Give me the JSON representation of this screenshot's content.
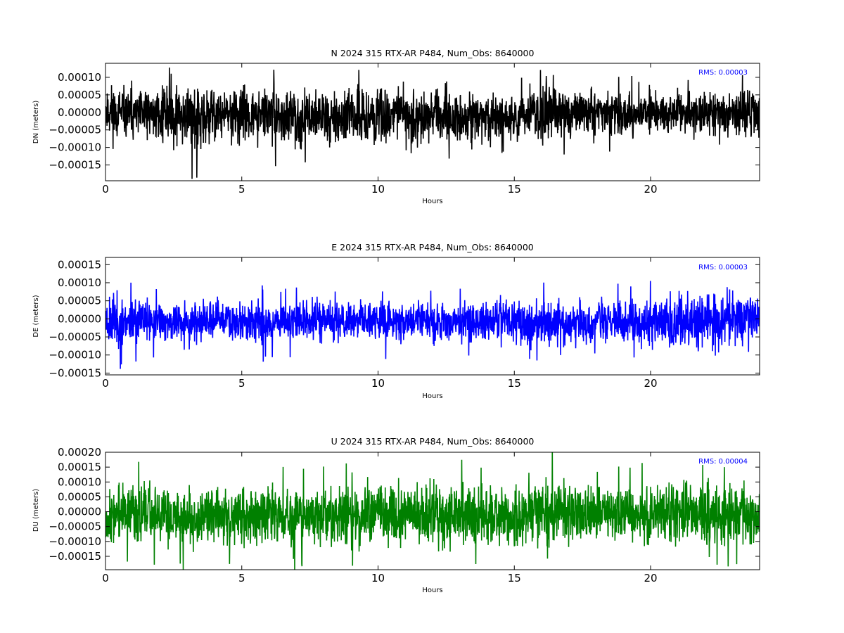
{
  "chart_data": [
    {
      "type": "line",
      "title": "N 2024 315 RTX-AR  P484, Num_Obs: 8640000",
      "xlabel": "Hours",
      "ylabel": "DN (meters)",
      "rms_label": "RMS:  0.00003",
      "color": "#000000",
      "xlim": [
        0,
        24
      ],
      "ylim": [
        -0.000195,
        0.00014
      ],
      "xticks": [
        0,
        5,
        10,
        15,
        20
      ],
      "xtick_labels": [
        "0",
        "5",
        "10",
        "15",
        "20"
      ],
      "yticks": [
        -0.00015,
        -0.0001,
        -5e-05,
        0.0,
        5e-05,
        0.0001
      ],
      "ytick_labels": [
        "−0.00015",
        "−0.00010",
        "−0.00005",
        "0.00000",
        "0.00005",
        "0.00010"
      ],
      "series": [
        {
          "x": [
            0,
            0.5,
            1,
            1.5,
            2,
            2.5,
            3,
            3.5,
            4,
            4.5,
            5,
            5.5,
            6,
            6.5,
            7,
            7.5,
            8,
            8.5,
            9,
            9.5,
            10,
            10.5,
            11,
            11.5,
            12,
            12.5,
            13,
            13.5,
            14,
            14.5,
            15,
            15.5,
            16,
            16.5,
            17,
            17.5,
            18,
            18.5,
            19,
            19.5,
            20,
            20.5,
            21,
            21.5,
            22,
            22.5,
            23,
            23.5,
            24
          ],
          "y_upper": [
            0.00013,
            9e-05,
            8e-05,
            9e-05,
            0.00012,
            0.00011,
            0.00012,
            0.0001,
            0.0001,
            9e-05,
            0.0001,
            9e-05,
            0.0001,
            8e-05,
            9e-05,
            8e-05,
            9e-05,
            8e-05,
            9e-05,
            0.0001,
            0.0001,
            0.0001,
            0.0001,
            9e-05,
            9e-05,
            0.0001,
            8e-05,
            8e-05,
            7e-05,
            8e-05,
            8e-05,
            7e-05,
            0.00011,
            0.00012,
            9e-05,
            9e-05,
            8e-05,
            8e-05,
            7e-05,
            8e-05,
            7e-05,
            8e-05,
            8e-05,
            7e-05,
            8e-05,
            8e-05,
            7e-05,
            8e-05,
            0.0001
          ],
          "y_lower": [
            -0.00012,
            -0.0001,
            -0.0001,
            -0.0001,
            -0.00012,
            -0.00012,
            -0.00013,
            -0.00016,
            -0.00011,
            -0.00011,
            -0.00012,
            -0.00011,
            -0.00011,
            -0.00011,
            -0.00012,
            -0.0001,
            -0.00011,
            -0.00011,
            -0.00011,
            -0.00012,
            -0.00012,
            -0.0001,
            -0.0001,
            -0.00011,
            -0.00011,
            -0.00015,
            -0.00011,
            -0.00011,
            -0.00011,
            -0.0001,
            -0.00011,
            -0.0001,
            -0.00012,
            -0.00011,
            -0.0001,
            -9e-05,
            -8e-05,
            -8e-05,
            -8e-05,
            -8e-05,
            -8e-05,
            -9e-05,
            -9e-05,
            -9e-05,
            -9e-05,
            -8e-05,
            -8e-05,
            -8e-05,
            -0.0001
          ]
        }
      ]
    },
    {
      "type": "line",
      "title": "E 2024 315 RTX-AR  P484, Num_Obs: 8640000",
      "xlabel": "Hours",
      "ylabel": "DE (meters)",
      "rms_label": "RMS:  0.00003",
      "color": "#0000ff",
      "xlim": [
        0,
        24
      ],
      "ylim": [
        -0.000155,
        0.00017
      ],
      "xticks": [
        0,
        5,
        10,
        15,
        20
      ],
      "xtick_labels": [
        "0",
        "5",
        "10",
        "15",
        "20"
      ],
      "yticks": [
        -0.00015,
        -0.0001,
        -5e-05,
        0.0,
        5e-05,
        0.0001,
        0.00015
      ],
      "ytick_labels": [
        "−0.00015",
        "−0.00010",
        "−0.00005",
        "0.00000",
        "0.00005",
        "0.00010",
        "0.00015"
      ],
      "series": [
        {
          "x": [
            0,
            0.5,
            1,
            1.5,
            2,
            2.5,
            3,
            3.5,
            4,
            4.5,
            5,
            5.5,
            6,
            6.5,
            7,
            7.5,
            8,
            8.5,
            9,
            9.5,
            10,
            10.5,
            11,
            11.5,
            12,
            12.5,
            13,
            13.5,
            14,
            14.5,
            15,
            15.5,
            16,
            16.5,
            17,
            17.5,
            18,
            18.5,
            19,
            19.5,
            20,
            20.5,
            21,
            21.5,
            22,
            22.5,
            23,
            23.5,
            24
          ],
          "y_upper": [
            0.00011,
            9e-05,
            8e-05,
            7e-05,
            6e-05,
            6e-05,
            6e-05,
            6e-05,
            7e-05,
            7e-05,
            7e-05,
            7e-05,
            7e-05,
            7e-05,
            7e-05,
            7e-05,
            7e-05,
            7e-05,
            7e-05,
            7e-05,
            7e-05,
            7e-05,
            7e-05,
            7e-05,
            7e-05,
            6e-05,
            6e-05,
            7e-05,
            7e-05,
            7e-05,
            7e-05,
            8e-05,
            8e-05,
            7e-05,
            7e-05,
            7e-05,
            7e-05,
            7e-05,
            7e-05,
            7e-05,
            8e-05,
            8e-05,
            9e-05,
            0.0001,
            0.00011,
            0.00012,
            0.00011,
            0.0001,
            0.0001
          ],
          "y_lower": [
            -0.00011,
            -0.0001,
            -9e-05,
            -8e-05,
            -8e-05,
            -8e-05,
            -8e-05,
            -8e-05,
            -8e-05,
            -8e-05,
            -9e-05,
            -9e-05,
            -9e-05,
            -8e-05,
            -8e-05,
            -8e-05,
            -8e-05,
            -8e-05,
            -8e-05,
            -8e-05,
            -8e-05,
            -8e-05,
            -8e-05,
            -8e-05,
            -8e-05,
            -8e-05,
            -8e-05,
            -8e-05,
            -8e-05,
            -8e-05,
            -9e-05,
            -0.0001,
            -0.0001,
            -9e-05,
            -9e-05,
            -9e-05,
            -9e-05,
            -9e-05,
            -9e-05,
            -9e-05,
            -9e-05,
            -0.0001,
            -0.0001,
            -0.00011,
            -0.00011,
            -0.00012,
            -0.00011,
            -0.0001,
            -0.0001
          ]
        }
      ]
    },
    {
      "type": "line",
      "title": "U 2024 315 RTX-AR  P484, Num_Obs: 8640000",
      "xlabel": "Hours",
      "ylabel": "DU (meters)",
      "rms_label": "RMS:  0.00004",
      "color": "#008000",
      "xlim": [
        0,
        24
      ],
      "ylim": [
        -0.000195,
        0.0002
      ],
      "xticks": [
        0,
        5,
        10,
        15,
        20
      ],
      "xtick_labels": [
        "0",
        "5",
        "10",
        "15",
        "20"
      ],
      "yticks": [
        -0.00015,
        -0.0001,
        -5e-05,
        0.0,
        5e-05,
        0.0001,
        0.00015,
        0.0002
      ],
      "ytick_labels": [
        "−0.00015",
        "−0.00010",
        "−0.00005",
        "0.00000",
        "0.00005",
        "0.00010",
        "0.00015",
        "0.00020"
      ],
      "series": [
        {
          "x": [
            0,
            0.5,
            1,
            1.5,
            2,
            2.5,
            3,
            3.5,
            4,
            4.5,
            5,
            5.5,
            6,
            6.5,
            7,
            7.5,
            8,
            8.5,
            9,
            9.5,
            10,
            10.5,
            11,
            11.5,
            12,
            12.5,
            13,
            13.5,
            14,
            14.5,
            15,
            15.5,
            16,
            16.5,
            17,
            17.5,
            18,
            18.5,
            19,
            19.5,
            20,
            20.5,
            21,
            21.5,
            22,
            22.5,
            23,
            23.5,
            24
          ],
          "y_upper": [
            0.0001,
            0.00013,
            0.00015,
            0.00012,
            0.00011,
            0.00011,
            0.00011,
            0.00011,
            0.00011,
            0.00011,
            0.00012,
            0.00011,
            0.00015,
            0.00012,
            0.00012,
            0.00012,
            0.00012,
            0.00012,
            0.00012,
            0.00013,
            0.00013,
            0.00014,
            0.00015,
            0.00013,
            0.00014,
            0.00013,
            0.00013,
            0.00013,
            0.00013,
            0.00013,
            0.00012,
            0.00012,
            0.00013,
            0.00016,
            0.00014,
            0.00013,
            0.00012,
            0.00012,
            0.00012,
            0.00012,
            0.00012,
            0.00012,
            0.00012,
            0.00012,
            0.00012,
            0.00012,
            0.00013,
            0.00013,
            0.00013
          ],
          "y_lower": [
            -0.00013,
            -0.00014,
            -0.00015,
            -0.00014,
            -0.00014,
            -0.00014,
            -0.00015,
            -0.00014,
            -0.00014,
            -0.00014,
            -0.00015,
            -0.00015,
            -0.00015,
            -0.00014,
            -0.00015,
            -0.00015,
            -0.00015,
            -0.00015,
            -0.00016,
            -0.00016,
            -0.00016,
            -0.00016,
            -0.00016,
            -0.00015,
            -0.00016,
            -0.00016,
            -0.00015,
            -0.00015,
            -0.00015,
            -0.00015,
            -0.00016,
            -0.00015,
            -0.00014,
            -0.00014,
            -0.00014,
            -0.00014,
            -0.00013,
            -0.00013,
            -0.00013,
            -0.00013,
            -0.00013,
            -0.00013,
            -0.00013,
            -0.00013,
            -0.00013,
            -0.00014,
            -0.00014,
            -0.00014,
            -0.00015
          ]
        }
      ]
    }
  ]
}
